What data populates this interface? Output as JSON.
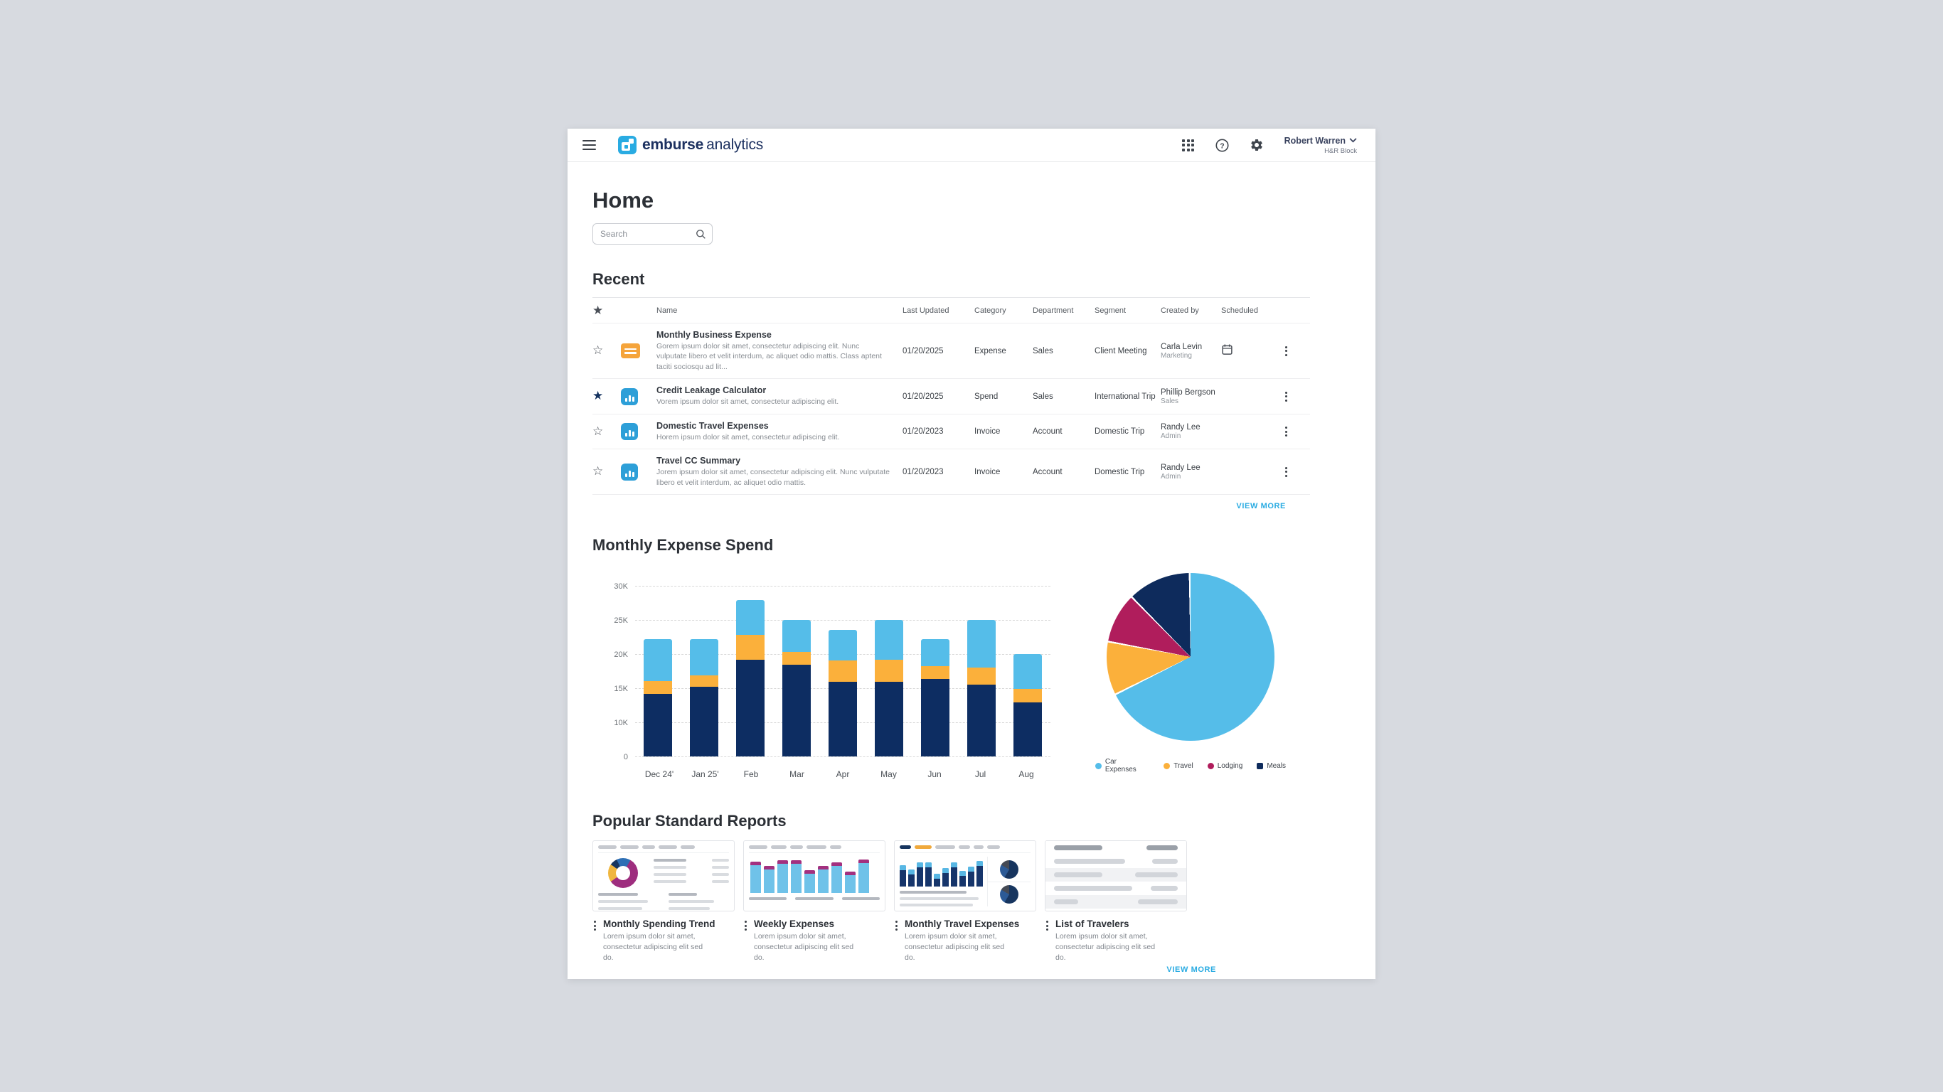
{
  "header": {
    "brand": {
      "bold": "emburse",
      "regular": "analytics"
    },
    "icons": [
      "apps-grid",
      "help",
      "settings"
    ],
    "user": {
      "name": "Robert Warren",
      "org": "H&R Block"
    }
  },
  "page": {
    "title": "Home"
  },
  "search": {
    "placeholder": "Search"
  },
  "recent": {
    "title": "Recent",
    "columns": [
      "Name",
      "Last Updated",
      "Category",
      "Department",
      "Segment",
      "Created by",
      "Scheduled"
    ],
    "rows": [
      {
        "starred": false,
        "name": "Monthly Business Expense",
        "description": "Gorem ipsum dolor sit amet, consectetur adipiscing elit. Nunc vulputate libero et velit interdum, ac aliquet odio mattis. Class aptent taciti sociosqu ad lit...",
        "last_updated": "01/20/2025",
        "category": "Expense",
        "department": "Sales",
        "segment": "Client Meeting",
        "created_by": "Carla Levin",
        "created_by_role": "Marketing",
        "scheduled": true
      },
      {
        "starred": true,
        "name": "Credit Leakage Calculator",
        "description": "Vorem ipsum dolor sit amet, consectetur adipiscing elit.",
        "last_updated": "01/20/2025",
        "category": "Spend",
        "department": "Sales",
        "segment": "International Trip",
        "created_by": "Phillip Bergson",
        "created_by_role": "Sales",
        "scheduled": false
      },
      {
        "starred": false,
        "name": "Domestic Travel Expenses",
        "description": "Horem ipsum dolor sit amet, consectetur adipiscing elit.",
        "last_updated": "01/20/2023",
        "category": "Invoice",
        "department": "Account",
        "segment": "Domestic Trip",
        "created_by": "Randy Lee",
        "created_by_role": "Admin",
        "scheduled": false
      },
      {
        "starred": false,
        "name": "Travel CC Summary",
        "description": "Jorem ipsum dolor sit amet, consectetur adipiscing elit. Nunc vulputate libero et velit interdum, ac aliquet odio mattis.",
        "last_updated": "01/20/2023",
        "category": "Invoice",
        "department": "Account",
        "segment": "Domestic Trip",
        "created_by": "Randy Lee",
        "created_by_role": "Admin",
        "scheduled": false
      }
    ],
    "view_more": "VIEW MORE"
  },
  "chart_data": [
    {
      "type": "bar",
      "stacked": true,
      "title": "Monthly Expense Spend",
      "categories": [
        "Dec 24'",
        "Jan 25'",
        "Feb",
        "Mar",
        "Apr",
        "May",
        "Jun",
        "Jul",
        "Aug"
      ],
      "series": [
        {
          "name": "Meals",
          "color": "#0d2d62",
          "values": [
            14.2,
            15.3,
            19.2,
            18.5,
            16.0,
            16.0,
            16.4,
            15.6,
            13.0
          ]
        },
        {
          "name": "Travel",
          "color": "#fbb03b",
          "values": [
            1.9,
            1.6,
            3.7,
            1.9,
            3.1,
            3.2,
            1.9,
            2.5,
            1.9
          ]
        },
        {
          "name": "Car Expenses",
          "color": "#55bde9",
          "values": [
            6.1,
            5.3,
            5.1,
            4.6,
            4.5,
            5.8,
            3.9,
            6.9,
            5.1
          ]
        }
      ],
      "unit": "K",
      "y_ticks": [
        "0",
        "10K",
        "15K",
        "20K",
        "25K",
        "30K"
      ],
      "y_tick_values": [
        0,
        10,
        15,
        20,
        25,
        30
      ],
      "grid": "dashed horizontal, ticks evenly spaced",
      "legend_position": "none"
    },
    {
      "type": "pie",
      "slices": [
        {
          "label": "Car Expenses",
          "color": "#55bde9",
          "percent": 67.8,
          "marker": "circle"
        },
        {
          "label": "Travel",
          "color": "#fbb03b",
          "percent": 10.3,
          "marker": "circle"
        },
        {
          "label": "Lodging",
          "color": "#b01d5c",
          "percent": 9.7,
          "marker": "circle"
        },
        {
          "label": "Meals",
          "color": "#0e2b5c",
          "percent": 12.2,
          "marker": "square"
        }
      ],
      "legend_position": "bottom"
    }
  ],
  "reports": {
    "title": "Popular Standard Reports",
    "cards": [
      {
        "title": "Monthly Spending Trend",
        "description": "Lorem ipsum dolor sit amet, consectetur adipiscing elit sed do.",
        "thumbnail": "donut-report"
      },
      {
        "title": "Weekly Expenses",
        "description": "Lorem ipsum dolor sit amet, consectetur adipiscing elit sed do.",
        "thumbnail": "bar-report"
      },
      {
        "title": "Monthly Travel Expenses",
        "description": "Lorem ipsum dolor sit amet, consectetur adipiscing elit sed do.",
        "thumbnail": "bar-pie-report"
      },
      {
        "title": "List of Travelers",
        "description": "Lorem ipsum dolor sit amet, consectetur adipiscing elit sed do.",
        "thumbnail": "table-report"
      }
    ],
    "view_more": "VIEW MORE"
  },
  "colors": {
    "accent_blue": "#29abe2",
    "navy": "#16325f",
    "page_bg": "#d7dae0"
  }
}
